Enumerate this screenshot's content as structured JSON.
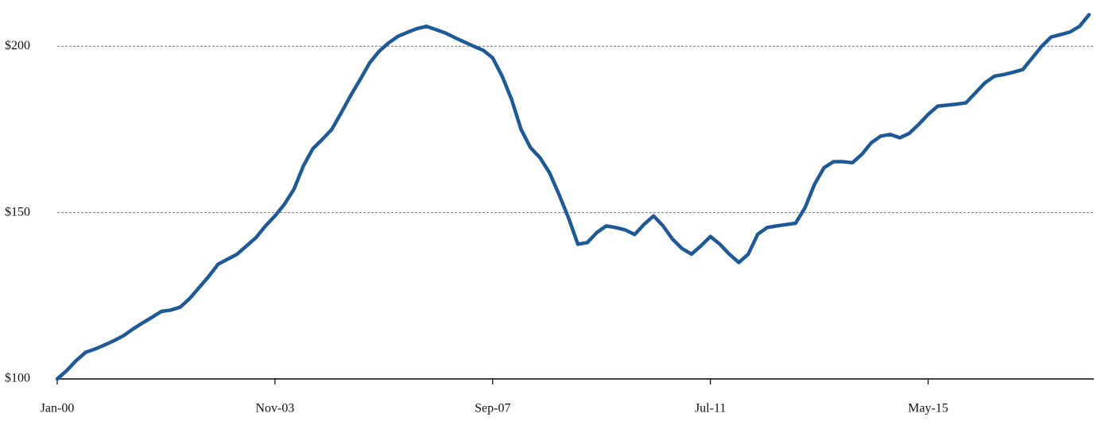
{
  "chart_data": {
    "type": "line",
    "categories": [
      "Jan-00",
      null,
      null,
      null,
      null,
      null,
      null,
      null,
      null,
      null,
      null,
      null,
      null,
      null,
      null,
      null,
      null,
      null,
      null,
      null,
      null,
      null,
      null,
      "Nov-03",
      null,
      null,
      null,
      null,
      null,
      null,
      null,
      null,
      null,
      null,
      null,
      null,
      null,
      null,
      null,
      null,
      null,
      null,
      null,
      null,
      null,
      null,
      "Sep-07",
      null,
      null,
      null,
      null,
      null,
      null,
      null,
      null,
      null,
      null,
      null,
      null,
      null,
      null,
      null,
      null,
      null,
      null,
      null,
      null,
      null,
      null,
      "Jul-11",
      null,
      null,
      null,
      null,
      null,
      null,
      null,
      null,
      null,
      null,
      null,
      null,
      null,
      null,
      null,
      null,
      null,
      null,
      null,
      null,
      null,
      null,
      "May-15",
      null,
      null,
      null,
      null,
      null,
      null,
      null,
      null,
      null,
      null,
      null,
      null,
      null,
      null,
      null,
      null,
      null
    ],
    "values": [
      100,
      102.5,
      105.5,
      108,
      109,
      110.2,
      111.5,
      113,
      115,
      116.8,
      118.5,
      120.3,
      120.7,
      121.6,
      124.2,
      127.5,
      130.8,
      134.5,
      136,
      137.5,
      140,
      142.5,
      146,
      149,
      152.5,
      157,
      164,
      169.2,
      172,
      175,
      180,
      185.2,
      190,
      195,
      198.5,
      201,
      203,
      204.2,
      205.3,
      206,
      205,
      204,
      202.6,
      201.3,
      200,
      198.8,
      196.5,
      191,
      184,
      175,
      169.5,
      166.5,
      162,
      155.5,
      148.5,
      140.5,
      141,
      144,
      146,
      145.5,
      144.8,
      143.4,
      146.5,
      149,
      146,
      142,
      139.2,
      137.5,
      140,
      142.8,
      140.5,
      137.5,
      135,
      137.5,
      143.5,
      145.5,
      146,
      146.4,
      146.8,
      151.5,
      158.5,
      163.5,
      165.3,
      165.3,
      165,
      167.5,
      171,
      173,
      173.5,
      172.5,
      173.8,
      176.5,
      179.5,
      182,
      182.3,
      182.6,
      183,
      186,
      189,
      191,
      191.5,
      192.2,
      193,
      196.5,
      200,
      202.8,
      203.5,
      204.3,
      206,
      209.5
    ],
    "color": "#1f5a96",
    "ylim": [
      100,
      212
    ],
    "yticks": [
      {
        "value": 100,
        "label": "$100"
      },
      {
        "value": 150,
        "label": "$150"
      },
      {
        "value": 200,
        "label": "$200"
      }
    ],
    "grid": true
  }
}
